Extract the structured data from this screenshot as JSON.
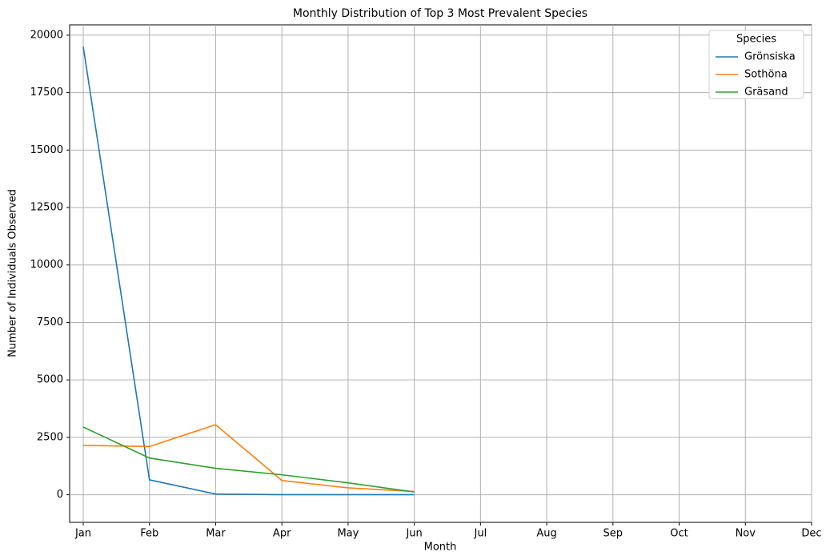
{
  "chart_data": {
    "type": "line",
    "title": "Monthly Distribution of Top 3 Most Prevalent Species",
    "x_label": "Month",
    "y_label": "Number of Individuals Observed",
    "categories": [
      "Jan",
      "Feb",
      "Mar",
      "Apr",
      "May",
      "Jun",
      "Jul",
      "Aug",
      "Sep",
      "Oct",
      "Nov",
      "Dec"
    ],
    "series": [
      {
        "name": "Grönsiska",
        "color": "#1f77b4",
        "values": [
          19500,
          650,
          30,
          5,
          5,
          5,
          null,
          null,
          null,
          null,
          null,
          null
        ]
      },
      {
        "name": "Sothöna",
        "color": "#ff7f0e",
        "values": [
          2150,
          2100,
          3050,
          620,
          300,
          140,
          null,
          null,
          null,
          null,
          null,
          null
        ]
      },
      {
        "name": "Gräsand",
        "color": "#2ca02c",
        "values": [
          2950,
          1600,
          1150,
          870,
          520,
          120,
          null,
          null,
          null,
          null,
          null,
          null
        ]
      }
    ],
    "ylim": [
      -1200,
      20450
    ],
    "yticks": [
      0,
      2500,
      5000,
      7500,
      10000,
      12500,
      15000,
      17500,
      20000
    ],
    "grid": true,
    "legend_title": "Species",
    "legend_position": "upper right"
  }
}
